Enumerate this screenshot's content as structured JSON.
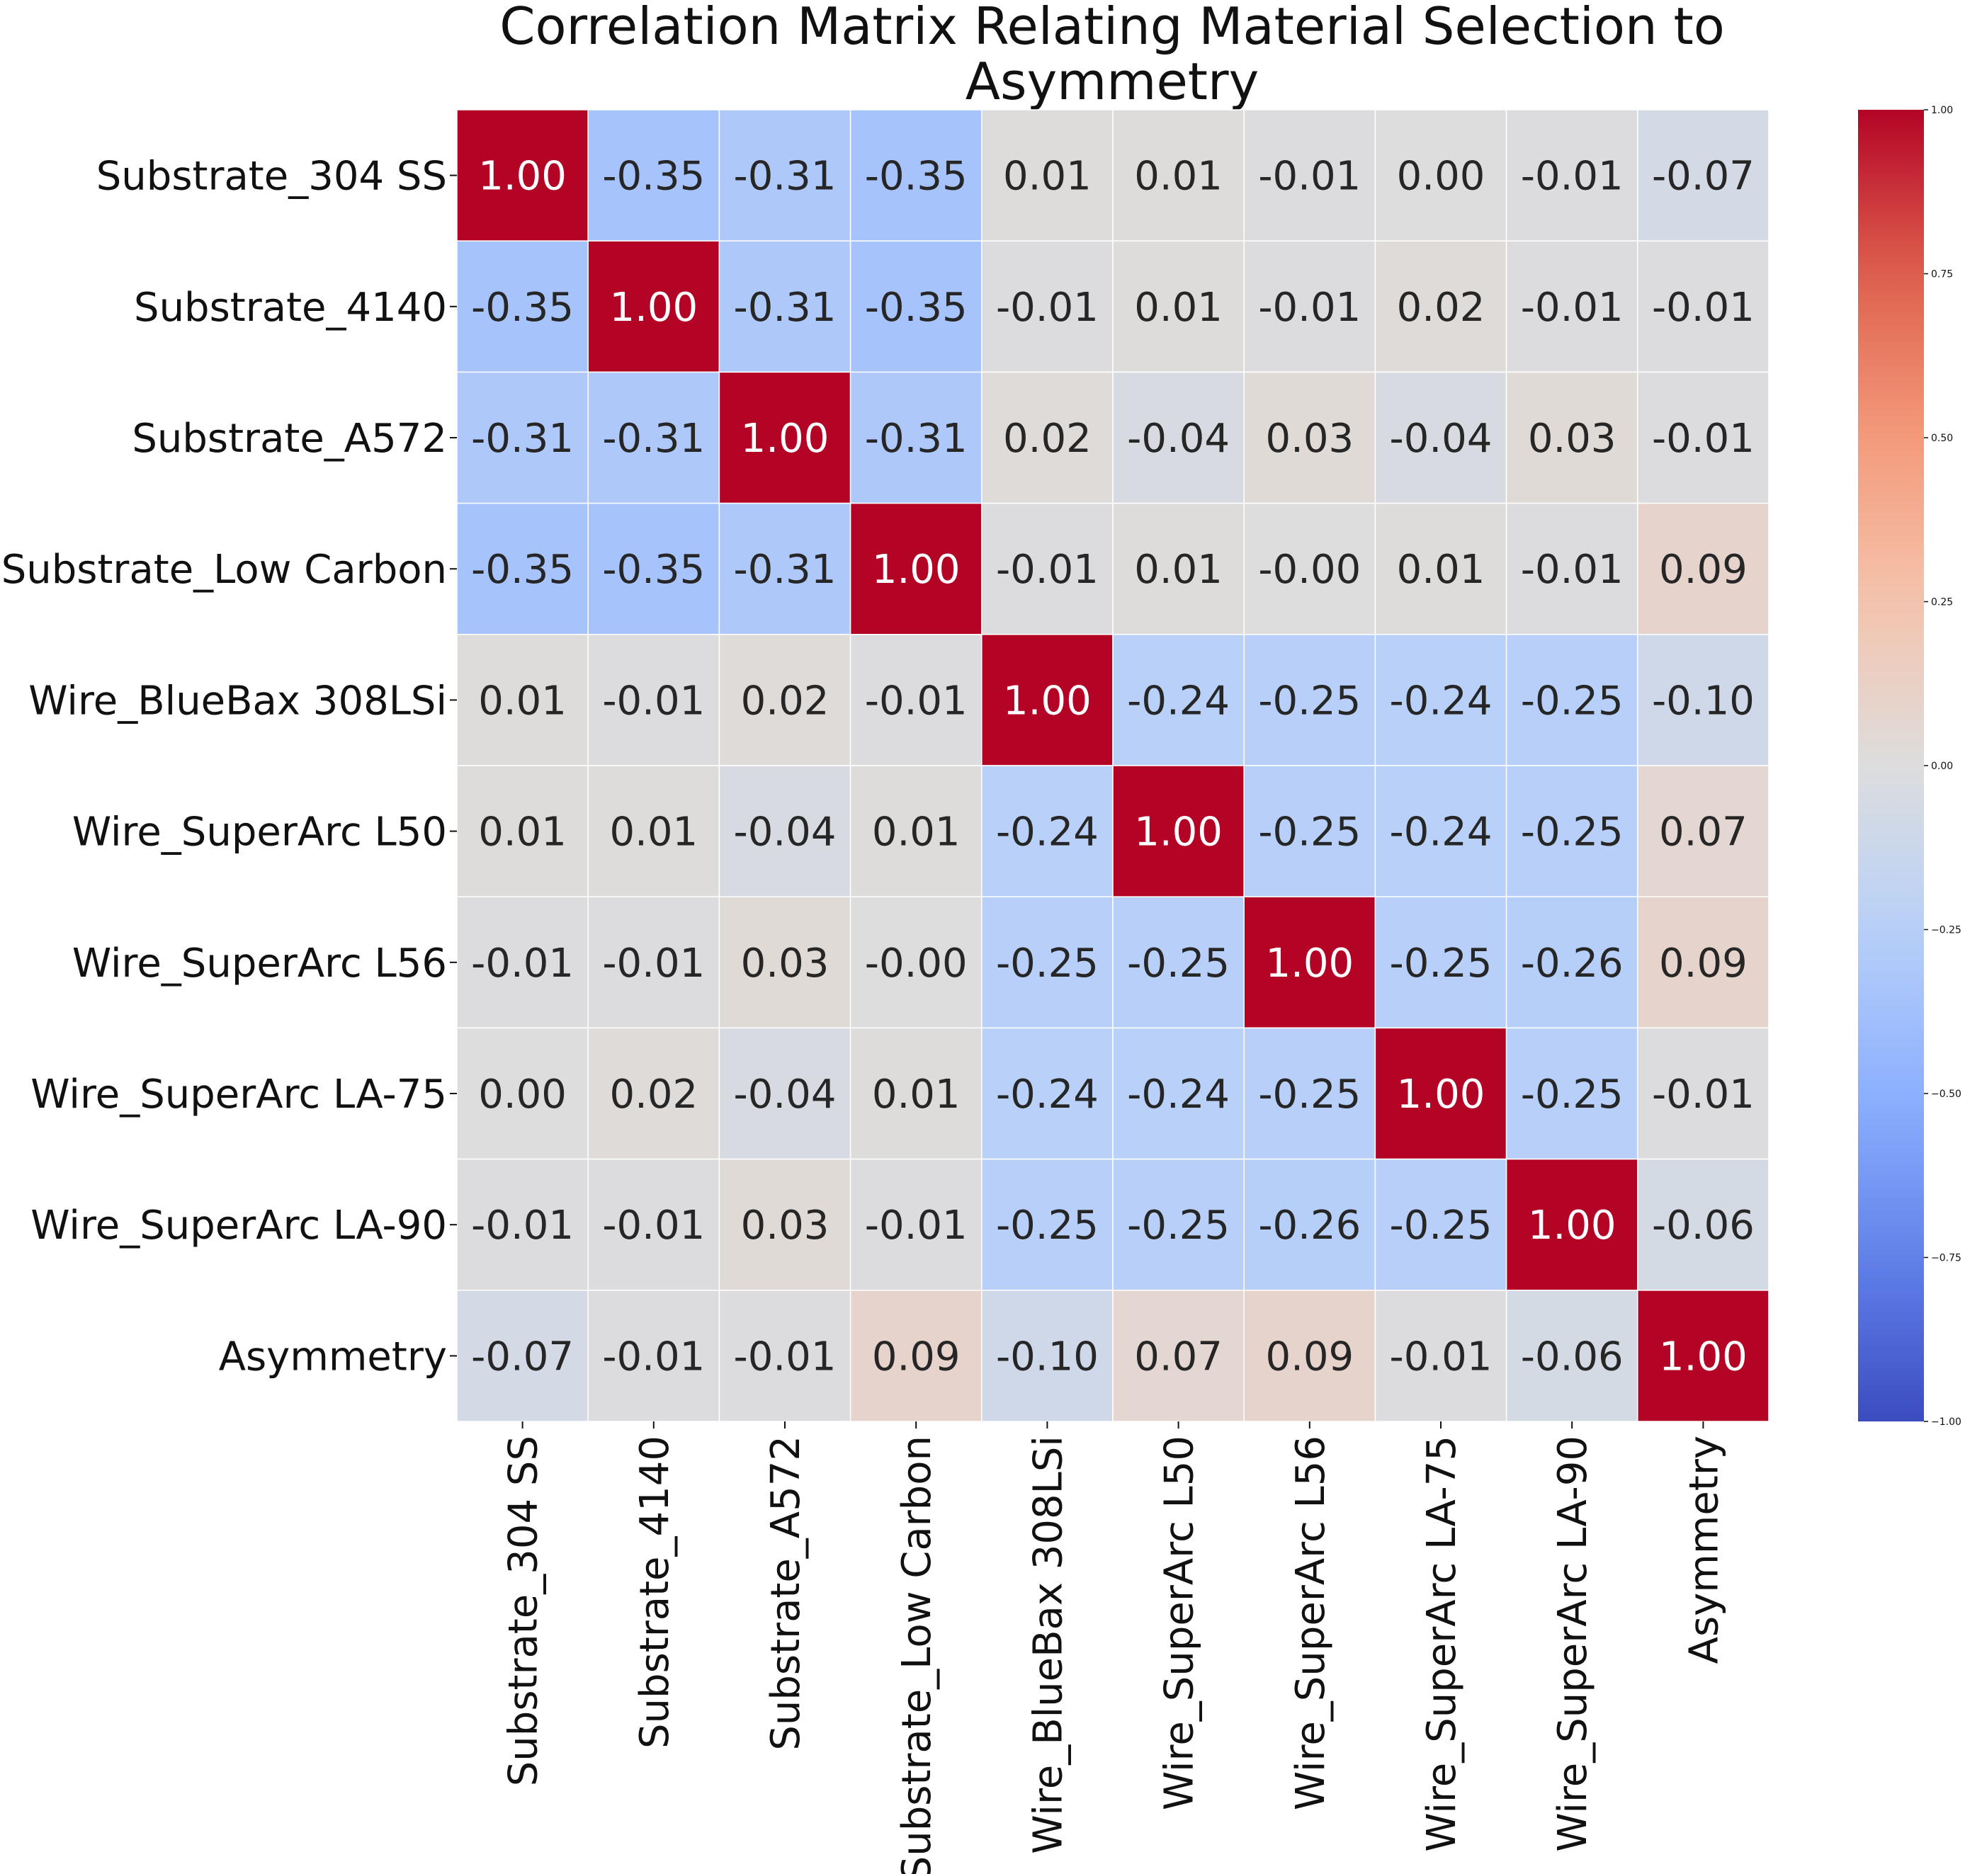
{
  "chart_data": {
    "type": "heatmap",
    "title": "Correlation Matrix Relating Material Selection to Asymmetry",
    "title_lines": [
      "Correlation Matrix Relating Material Selection to",
      "Asymmetry"
    ],
    "xlabel": "",
    "ylabel": "",
    "rows": [
      "Substrate_304 SS",
      "Substrate_4140",
      "Substrate_A572",
      "Substrate_Low Carbon",
      "Wire_BlueBax 308LSi",
      "Wire_SuperArc L50",
      "Wire_SuperArc L56",
      "Wire_SuperArc LA-75",
      "Wire_SuperArc LA-90",
      "Asymmetry"
    ],
    "columns": [
      "Substrate_304 SS",
      "Substrate_4140",
      "Substrate_A572",
      "Substrate_Low Carbon",
      "Wire_BlueBax 308LSi",
      "Wire_SuperArc L50",
      "Wire_SuperArc L56",
      "Wire_SuperArc LA-75",
      "Wire_SuperArc LA-90",
      "Asymmetry"
    ],
    "values": [
      [
        1.0,
        -0.35,
        -0.31,
        -0.35,
        0.01,
        0.01,
        -0.01,
        0.0,
        -0.01,
        -0.07
      ],
      [
        -0.35,
        1.0,
        -0.31,
        -0.35,
        -0.01,
        0.01,
        -0.01,
        0.02,
        -0.01,
        -0.01
      ],
      [
        -0.31,
        -0.31,
        1.0,
        -0.31,
        0.02,
        -0.04,
        0.03,
        -0.04,
        0.03,
        -0.01
      ],
      [
        -0.35,
        -0.35,
        -0.31,
        1.0,
        -0.01,
        0.01,
        -0.0,
        0.01,
        -0.01,
        0.09
      ],
      [
        0.01,
        -0.01,
        0.02,
        -0.01,
        1.0,
        -0.24,
        -0.25,
        -0.24,
        -0.25,
        -0.1
      ],
      [
        0.01,
        0.01,
        -0.04,
        0.01,
        -0.24,
        1.0,
        -0.25,
        -0.24,
        -0.25,
        0.07
      ],
      [
        -0.01,
        -0.01,
        0.03,
        -0.0,
        -0.25,
        -0.25,
        1.0,
        -0.25,
        -0.26,
        0.09
      ],
      [
        0.0,
        0.02,
        -0.04,
        0.01,
        -0.24,
        -0.24,
        -0.25,
        1.0,
        -0.25,
        -0.01
      ],
      [
        -0.01,
        -0.01,
        0.03,
        -0.01,
        -0.25,
        -0.25,
        -0.26,
        -0.25,
        1.0,
        -0.06
      ],
      [
        -0.07,
        -0.01,
        -0.01,
        0.09,
        -0.1,
        0.07,
        0.09,
        -0.01,
        -0.06,
        1.0
      ]
    ],
    "labels": [
      [
        "1.00",
        "-0.35",
        "-0.31",
        "-0.35",
        "0.01",
        "0.01",
        "-0.01",
        "0.00",
        "-0.01",
        "-0.07"
      ],
      [
        "-0.35",
        "1.00",
        "-0.31",
        "-0.35",
        "-0.01",
        "0.01",
        "-0.01",
        "0.02",
        "-0.01",
        "-0.01"
      ],
      [
        "-0.31",
        "-0.31",
        "1.00",
        "-0.31",
        "0.02",
        "-0.04",
        "0.03",
        "-0.04",
        "0.03",
        "-0.01"
      ],
      [
        "-0.35",
        "-0.35",
        "-0.31",
        "1.00",
        "-0.01",
        "0.01",
        "-0.00",
        "0.01",
        "-0.01",
        "0.09"
      ],
      [
        "0.01",
        "-0.01",
        "0.02",
        "-0.01",
        "1.00",
        "-0.24",
        "-0.25",
        "-0.24",
        "-0.25",
        "-0.10"
      ],
      [
        "0.01",
        "0.01",
        "-0.04",
        "0.01",
        "-0.24",
        "1.00",
        "-0.25",
        "-0.24",
        "-0.25",
        "0.07"
      ],
      [
        "-0.01",
        "-0.01",
        "0.03",
        "-0.00",
        "-0.25",
        "-0.25",
        "1.00",
        "-0.25",
        "-0.26",
        "0.09"
      ],
      [
        "0.00",
        "0.02",
        "-0.04",
        "0.01",
        "-0.24",
        "-0.24",
        "-0.25",
        "1.00",
        "-0.25",
        "-0.01"
      ],
      [
        "-0.01",
        "-0.01",
        "0.03",
        "-0.01",
        "-0.25",
        "-0.25",
        "-0.26",
        "-0.25",
        "1.00",
        "-0.06"
      ],
      [
        "-0.07",
        "-0.01",
        "-0.01",
        "0.09",
        "-0.10",
        "0.07",
        "0.09",
        "-0.01",
        "-0.06",
        "1.00"
      ]
    ],
    "colormap": "coolwarm",
    "vmin": -1.0,
    "vmax": 1.0,
    "colorbar": {
      "ticks": [
        1.0,
        0.75,
        0.5,
        0.25,
        0.0,
        -0.25,
        -0.5,
        -0.75,
        -1.0
      ],
      "tick_labels": [
        "1.00",
        "0.75",
        "0.50",
        "0.25",
        "0.00",
        "−0.25",
        "−0.50",
        "−0.75",
        "−1.00"
      ]
    },
    "grid": true,
    "legend": "right"
  }
}
